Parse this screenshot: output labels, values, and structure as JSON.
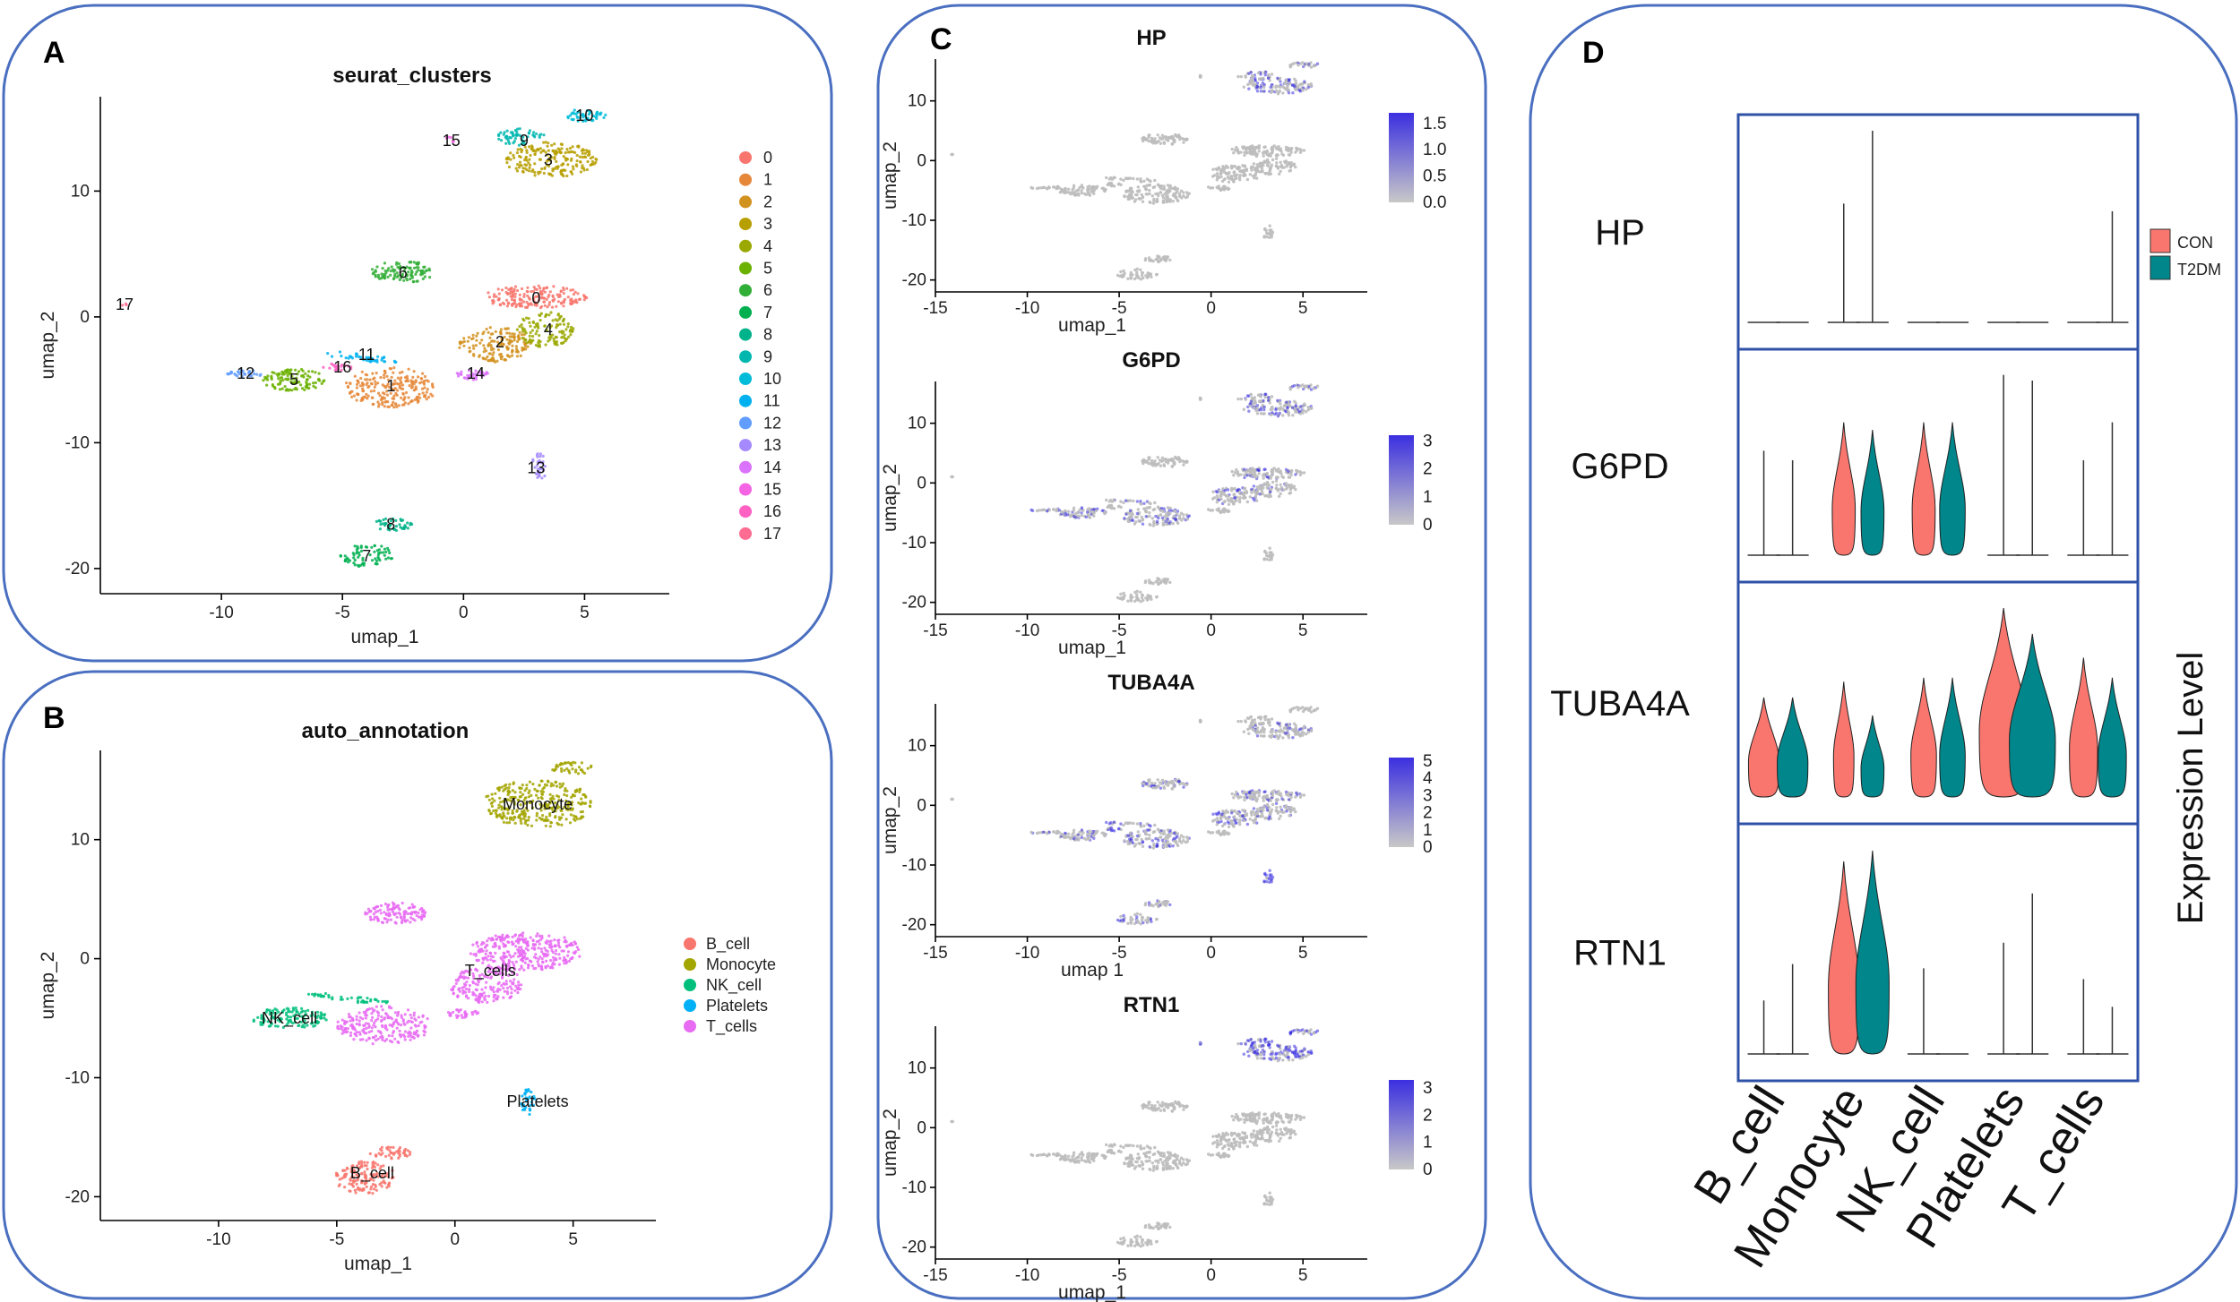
{
  "figure": {
    "panels": {
      "A": {
        "letter": "A",
        "title": "seurat_clusters"
      },
      "B": {
        "letter": "B",
        "title": "auto_annotation"
      },
      "C": {
        "letter": "C"
      },
      "D": {
        "letter": "D"
      }
    },
    "xlabel": "umap_1",
    "ylabel": "umap_2",
    "colors": {
      "frame": "#4a6fc0",
      "grey": "#bdbdbd",
      "feature_high": "#3b2fe0",
      "con": "#f8766d",
      "t2dm": "#00868b",
      "violin_box": "#2f52a8"
    }
  },
  "chart_data": [
    {
      "panel": "A",
      "type": "scatter",
      "title": "seurat_clusters",
      "xlabel": "umap_1",
      "ylabel": "umap_2",
      "xlim": [
        -15,
        8.5
      ],
      "ylim": [
        -22,
        17.5
      ],
      "xticks": [
        -10,
        -5,
        0,
        5
      ],
      "yticks": [
        -20,
        -10,
        0,
        10
      ],
      "legend_position": "right",
      "clusters": [
        {
          "name": "0",
          "label": "0",
          "color": "#f8766d",
          "center": [
            3.0,
            1.5
          ]
        },
        {
          "name": "1",
          "label": "1",
          "color": "#e6883a",
          "center": [
            -3.0,
            -5.5
          ]
        },
        {
          "name": "2",
          "label": "2",
          "color": "#d29220",
          "center": [
            1.5,
            -2.0
          ]
        },
        {
          "name": "3",
          "label": "3",
          "color": "#b79f00",
          "center": [
            3.5,
            12.5
          ]
        },
        {
          "name": "4",
          "label": "4",
          "color": "#9aa800",
          "center": [
            3.5,
            -1.0
          ]
        },
        {
          "name": "5",
          "label": "5",
          "color": "#6bb100",
          "center": [
            -7.0,
            -5.0
          ]
        },
        {
          "name": "6",
          "label": "6",
          "color": "#31ae36",
          "center": [
            -2.5,
            3.5
          ]
        },
        {
          "name": "7",
          "label": "7",
          "color": "#00b050",
          "center": [
            -4.0,
            -19.0
          ]
        },
        {
          "name": "8",
          "label": "8",
          "color": "#00b38a",
          "center": [
            -3.0,
            -16.5
          ]
        },
        {
          "name": "9",
          "label": "9",
          "color": "#00b7b0",
          "center": [
            2.5,
            14.0
          ]
        },
        {
          "name": "10",
          "label": "10",
          "color": "#00bcd8",
          "center": [
            5.0,
            16.0
          ]
        },
        {
          "name": "11",
          "label": "11",
          "color": "#00b1f0",
          "center": [
            -4.0,
            -3.0
          ]
        },
        {
          "name": "12",
          "label": "12",
          "color": "#619cff",
          "center": [
            -9.0,
            -4.5
          ]
        },
        {
          "name": "13",
          "label": "13",
          "color": "#a58aff",
          "center": [
            3.0,
            -12.0
          ]
        },
        {
          "name": "14",
          "label": "14",
          "color": "#db72fb",
          "center": [
            0.5,
            -4.5
          ]
        },
        {
          "name": "15",
          "label": "15",
          "color": "#f564e3",
          "center": [
            -0.5,
            14.0
          ]
        },
        {
          "name": "16",
          "label": "16",
          "color": "#ff61c3",
          "center": [
            -5.0,
            -4.0
          ]
        },
        {
          "name": "17",
          "label": "17",
          "color": "#ff6c91",
          "center": [
            -14.0,
            1.0
          ]
        }
      ]
    },
    {
      "panel": "B",
      "type": "scatter",
      "title": "auto_annotation",
      "xlabel": "umap_1",
      "ylabel": "umap_2",
      "xlim": [
        -15,
        8.5
      ],
      "ylim": [
        -22,
        17.5
      ],
      "xticks": [
        -10,
        -5,
        0,
        5
      ],
      "yticks": [
        -20,
        -10,
        0,
        10
      ],
      "legend_position": "right",
      "groups": [
        {
          "name": "B_cell",
          "label": "B_cell",
          "color": "#f8766d",
          "center": [
            -3.5,
            -18.0
          ]
        },
        {
          "name": "Monocyte",
          "label": "Monocyte",
          "color": "#a3a500",
          "center": [
            3.5,
            13.0
          ]
        },
        {
          "name": "NK_cell",
          "label": "NK_cell",
          "color": "#00bf7d",
          "center": [
            -7.0,
            -5.0
          ]
        },
        {
          "name": "Platelets",
          "label": "Platelets",
          "color": "#00b0f6",
          "center": [
            3.5,
            -12.0
          ]
        },
        {
          "name": "T_cells",
          "label": "T_cells",
          "color": "#e76bf3",
          "center": [
            1.5,
            -1.0
          ]
        }
      ]
    },
    {
      "panel": "C",
      "type": "scatter",
      "xlabel": "umap_1",
      "ylabel": "umap_2",
      "xlim": [
        -15,
        8.5
      ],
      "ylim": [
        -22,
        17
      ],
      "xticks": [
        -15,
        -10,
        -5,
        0,
        5
      ],
      "yticks": [
        -20,
        -10,
        0,
        10
      ],
      "features": [
        {
          "name": "HP",
          "title": "HP",
          "scale_ticks": [
            "1.5",
            "1.0",
            "0.5",
            "0.0"
          ],
          "max": 1.7,
          "xlabel": "umap_1"
        },
        {
          "name": "G6PD",
          "title": "G6PD",
          "scale_ticks": [
            "3",
            "2",
            "1",
            "0"
          ],
          "max": 3.2,
          "xlabel": "umap_1"
        },
        {
          "name": "TUBA4A",
          "title": "TUBA4A",
          "scale_ticks": [
            "5",
            "4",
            "3",
            "2",
            "1",
            "0"
          ],
          "max": 5.2,
          "xlabel": "umap 1"
        },
        {
          "name": "RTN1",
          "title": "RTN1",
          "scale_ticks": [
            "3",
            "2",
            "1",
            "0"
          ],
          "max": 3.3,
          "xlabel": "umap_1"
        }
      ]
    },
    {
      "panel": "D",
      "type": "violin",
      "ylabel": "Expression Level",
      "categories": [
        "B_cell",
        "Monocyte",
        "NK_cell",
        "Platelets",
        "T_cells"
      ],
      "legend": [
        {
          "name": "CON",
          "label": "CON",
          "color": "#f8766d"
        },
        {
          "name": "T2DM",
          "label": "T2DM",
          "color": "#00868b"
        }
      ],
      "genes": [
        {
          "name": "HP",
          "label": "HP",
          "width": [
            [
              0.03,
              0.03
            ],
            [
              0.03,
              0.03
            ],
            [
              0.03,
              0.03
            ],
            [
              0.03,
              0.03
            ],
            [
              0.03,
              0.03
            ]
          ],
          "max": [
            [
              0.0,
              0.0
            ],
            [
              0.62,
              1.0
            ],
            [
              0.0,
              0.0
            ],
            [
              0.0,
              0.0
            ],
            [
              0.0,
              0.58
            ]
          ]
        },
        {
          "name": "G6PD",
          "label": "G6PD",
          "width": [
            [
              0.05,
              0.05
            ],
            [
              0.45,
              0.45
            ],
            [
              0.45,
              0.5
            ],
            [
              0.03,
              0.03
            ],
            [
              0.05,
              0.05
            ]
          ],
          "max": [
            [
              0.55,
              0.5
            ],
            [
              0.7,
              0.66
            ],
            [
              0.7,
              0.7
            ],
            [
              0.95,
              0.92
            ],
            [
              0.5,
              0.7
            ]
          ]
        },
        {
          "name": "TUBA4A",
          "label": "TUBA4A",
          "width": [
            [
              0.6,
              0.6
            ],
            [
              0.4,
              0.45
            ],
            [
              0.5,
              0.5
            ],
            [
              0.95,
              0.9
            ],
            [
              0.55,
              0.55
            ]
          ],
          "max": [
            [
              0.5,
              0.5
            ],
            [
              0.58,
              0.41
            ],
            [
              0.6,
              0.6
            ],
            [
              0.95,
              0.82
            ],
            [
              0.7,
              0.6
            ]
          ]
        },
        {
          "name": "RTN1",
          "label": "RTN1",
          "width": [
            [
              0.03,
              0.03
            ],
            [
              0.6,
              0.65
            ],
            [
              0.03,
              0.03
            ],
            [
              0.03,
              0.03
            ],
            [
              0.03,
              0.03
            ]
          ],
          "max": [
            [
              0.25,
              0.42
            ],
            [
              0.9,
              0.95
            ],
            [
              0.4,
              0.0
            ],
            [
              0.52,
              0.75
            ],
            [
              0.35,
              0.22
            ]
          ]
        }
      ]
    }
  ]
}
